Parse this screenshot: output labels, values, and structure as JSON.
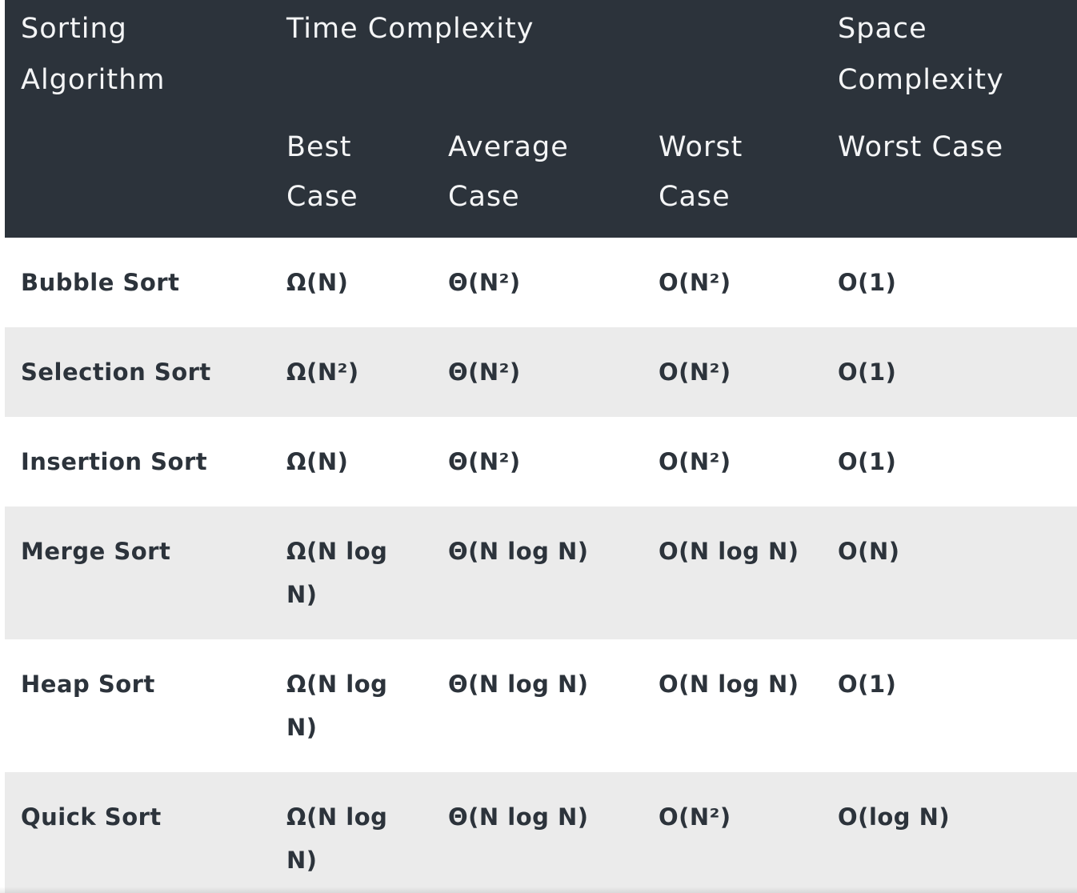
{
  "header": {
    "algorithm": "Sorting Algorithm",
    "time_complexity": "Time Complexity",
    "space_complexity": "Space Complexity",
    "best_case": "Best Case",
    "average_case": "Average Case",
    "worst_case": "Worst Case",
    "space_worst_case": "Worst Case"
  },
  "rows": [
    {
      "name": "Bubble Sort",
      "best": "Ω(N)",
      "average": "Θ(N²)",
      "worst": "O(N²)",
      "space": "O(1)"
    },
    {
      "name": "Selection Sort",
      "best": "Ω(N²)",
      "average": "Θ(N²)",
      "worst": "O(N²)",
      "space": "O(1)"
    },
    {
      "name": "Insertion Sort",
      "best": "Ω(N)",
      "average": "Θ(N²)",
      "worst": "O(N²)",
      "space": "O(1)"
    },
    {
      "name": "Merge Sort",
      "best": "Ω(N log N)",
      "average": "Θ(N log N)",
      "worst": "O(N log N)",
      "space": "O(N)"
    },
    {
      "name": "Heap Sort",
      "best": "Ω(N log N)",
      "average": "Θ(N log N)",
      "worst": "O(N log N)",
      "space": "O(1)"
    },
    {
      "name": "Quick Sort",
      "best": "Ω(N log N)",
      "average": "Θ(N log N)",
      "worst": "O(N²)",
      "space": "O(log N)"
    }
  ],
  "colors": {
    "header_bg": "#2c333b",
    "header_text": "#f4f5f6",
    "body_text": "#2c333b",
    "row_alt_bg": "#ebebeb",
    "row_bg": "#ffffff"
  }
}
